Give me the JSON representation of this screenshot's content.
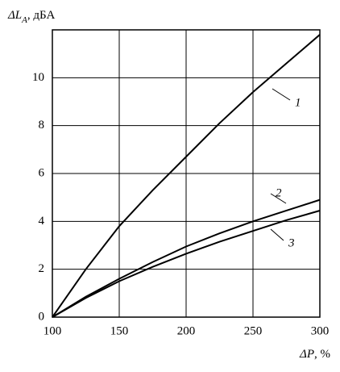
{
  "chart_data": {
    "type": "line",
    "y_label": {
      "symbol": "ΔL",
      "subscript": "A",
      "unit": ", дБА"
    },
    "x_label": {
      "symbol": "ΔP",
      "unit": ", %"
    },
    "x": [
      100,
      125,
      150,
      175,
      200,
      225,
      250,
      275,
      300
    ],
    "series": [
      {
        "name": "1",
        "color": "#000000",
        "values": [
          0,
          2.0,
          3.8,
          5.3,
          6.7,
          8.1,
          9.4,
          10.6,
          11.8
        ]
      },
      {
        "name": "2",
        "color": "#000000",
        "values": [
          0,
          0.85,
          1.6,
          2.3,
          2.95,
          3.5,
          4.0,
          4.45,
          4.9
        ]
      },
      {
        "name": "3",
        "color": "#000000",
        "values": [
          0,
          0.8,
          1.5,
          2.1,
          2.65,
          3.15,
          3.6,
          4.05,
          4.45
        ]
      }
    ],
    "xlim": [
      100,
      300
    ],
    "xticks": [
      100,
      150,
      200,
      250,
      300
    ],
    "ylim": [
      0,
      12
    ],
    "yticks": [
      0,
      2,
      4,
      6,
      8,
      10
    ],
    "grid": true
  }
}
